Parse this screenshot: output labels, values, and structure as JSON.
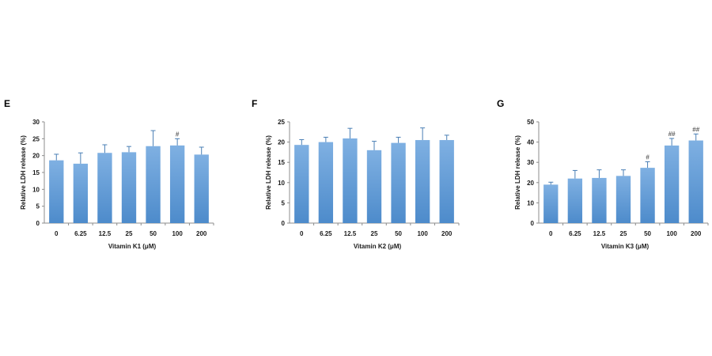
{
  "colors": {
    "bar_top": "#7fb0e2",
    "bar_bottom": "#4d8bcb",
    "axis": "#8c8c8c",
    "error": "#4a7fb5"
  },
  "chart_data": [
    {
      "panel": "E",
      "type": "bar",
      "categories": [
        "0",
        "6.25",
        "12.5",
        "25",
        "50",
        "100",
        "200"
      ],
      "values": [
        18.6,
        17.6,
        20.8,
        21.0,
        22.8,
        23.0,
        20.3
      ],
      "errors": [
        1.8,
        3.2,
        2.4,
        1.7,
        4.6,
        2.0,
        2.2
      ],
      "annotations": [
        "",
        "",
        "",
        "",
        "",
        "#",
        ""
      ],
      "xlabel": "Vitamin K1 (μM)",
      "ylabel": "Relative LDH release (%)",
      "ylim": [
        0,
        30
      ],
      "yticks": [
        0,
        5,
        10,
        15,
        20,
        25,
        30
      ]
    },
    {
      "panel": "F",
      "type": "bar",
      "categories": [
        "0",
        "6.25",
        "12.5",
        "25",
        "50",
        "100",
        "200"
      ],
      "values": [
        19.3,
        20.0,
        20.9,
        18.0,
        19.8,
        20.5,
        20.5
      ],
      "errors": [
        1.3,
        1.2,
        2.5,
        2.2,
        1.4,
        3.0,
        1.2
      ],
      "annotations": [
        "",
        "",
        "",
        "",
        "",
        "",
        ""
      ],
      "xlabel": "Vitamin K2 (μM)",
      "ylabel": "Relative LDH release (%)",
      "ylim": [
        0,
        25
      ],
      "yticks": [
        0,
        5,
        10,
        15,
        20,
        25
      ]
    },
    {
      "panel": "G",
      "type": "bar",
      "categories": [
        "0",
        "6.25",
        "12.5",
        "25",
        "50",
        "100",
        "200"
      ],
      "values": [
        19.0,
        22.0,
        22.3,
        23.3,
        27.3,
        38.3,
        40.8
      ],
      "errors": [
        1.2,
        4.0,
        4.0,
        3.0,
        3.0,
        3.5,
        3.2
      ],
      "annotations": [
        "",
        "",
        "",
        "",
        "#",
        "##",
        "##"
      ],
      "xlabel": "Vitamin K3 (μM)",
      "ylabel": "Relative LDH release (%)",
      "ylim": [
        0,
        50
      ],
      "yticks": [
        0,
        10,
        20,
        30,
        40,
        50
      ]
    }
  ]
}
